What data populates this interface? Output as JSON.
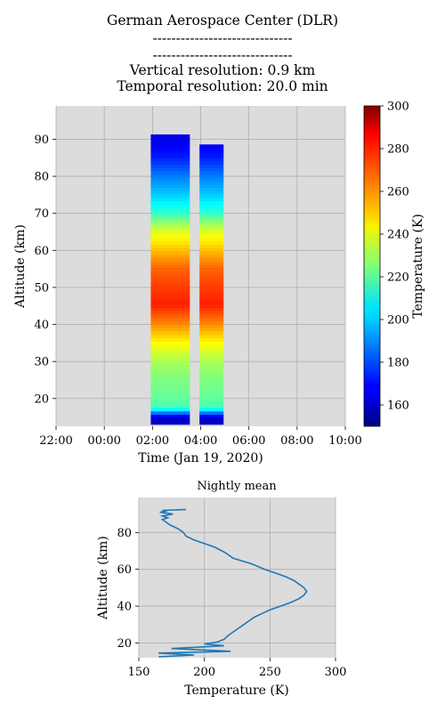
{
  "title_lines": [
    "German Aerospace Center (DLR)",
    "------------------------------",
    "------------------------------",
    "Vertical resolution: 0.9 km",
    "Temporal resolution: 20.0 min"
  ],
  "chart_data": [
    {
      "type": "heatmap",
      "xlabel": "Time (Jan 19, 2020)",
      "ylabel": "Altitude (km)",
      "x_ticks": [
        "22:00",
        "00:00",
        "02:00",
        "04:00",
        "06:00",
        "08:00",
        "10:00"
      ],
      "x_tick_hours": [
        -2,
        0,
        2,
        4,
        6,
        8,
        10
      ],
      "xlim_hours": [
        -2,
        10
      ],
      "y_ticks": [
        20,
        30,
        40,
        50,
        60,
        70,
        80,
        90
      ],
      "ylim": [
        12.5,
        99
      ],
      "grid": true,
      "colormap": "jet",
      "colorbar": {
        "label": "Temperature (K)",
        "range": [
          150,
          300
        ],
        "ticks": [
          160,
          180,
          200,
          220,
          240,
          260,
          280,
          300
        ]
      },
      "segments": [
        {
          "start_hour": 1.93,
          "end_hour": 3.55,
          "top_altitude_km": 91
        },
        {
          "start_hour": 3.95,
          "end_hour": 4.95,
          "top_altitude_km": 88.5
        }
      ],
      "profile_by_altitude": {
        "altitude_km": [
          14,
          15,
          17,
          19,
          21,
          25,
          30,
          35,
          40,
          45,
          50,
          55,
          60,
          65,
          70,
          75,
          80,
          85,
          90
        ],
        "temperature_K": [
          160,
          170,
          215,
          220,
          222,
          225,
          232,
          245,
          262,
          277,
          272,
          266,
          252,
          238,
          212,
          198,
          186,
          172,
          165
        ]
      }
    },
    {
      "type": "line",
      "title": "Nightly mean",
      "xlabel": "Temperature (K)",
      "ylabel": "Altitude (km)",
      "xlim": [
        150,
        300
      ],
      "ylim": [
        12,
        99
      ],
      "x_ticks": [
        150,
        200,
        250,
        300
      ],
      "y_ticks": [
        20,
        40,
        60,
        80
      ],
      "grid": true,
      "series": [
        {
          "color": "#1f77b4",
          "x": [
            165,
            192,
            165,
            220,
            175,
            215,
            200,
            210,
            215,
            218,
            222,
            226,
            230,
            234,
            238,
            244,
            250,
            258,
            266,
            272,
            276,
            278,
            276,
            272,
            268,
            262,
            254,
            246,
            236,
            222,
            216,
            208,
            200,
            192,
            186,
            184,
            180,
            174,
            170,
            168,
            172,
            168,
            176,
            166,
            170,
            168,
            186
          ],
          "y": [
            12.5,
            13.5,
            14.5,
            15.5,
            17,
            18.5,
            19.5,
            20.5,
            22,
            24,
            26,
            28,
            30,
            32,
            34,
            36,
            38,
            40,
            42,
            44,
            46,
            48,
            50,
            52,
            54,
            56,
            58,
            60,
            63,
            66,
            69,
            72,
            74,
            76,
            78,
            80,
            82,
            84,
            86,
            87,
            88,
            89,
            90,
            91,
            91.5,
            92,
            92.5
          ]
        }
      ]
    }
  ]
}
